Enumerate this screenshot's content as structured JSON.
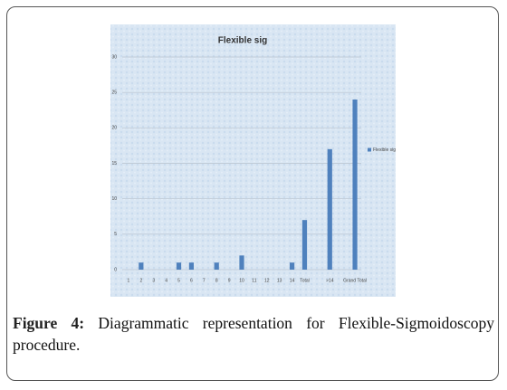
{
  "chart_data": {
    "type": "bar",
    "title": "Flexible sig",
    "categories": [
      "1",
      "2",
      "3",
      "4",
      "5",
      "6",
      "7",
      "8",
      "9",
      "10",
      "11",
      "12",
      "13",
      "14",
      "Total",
      null,
      ">14",
      null,
      "Grand Total"
    ],
    "series": [
      {
        "name": "Flexible sig",
        "color": "#4f81bd",
        "values": [
          0,
          1,
          0,
          0,
          1,
          1,
          0,
          1,
          0,
          2,
          0,
          0,
          0,
          1,
          7,
          null,
          17,
          null,
          24
        ]
      }
    ],
    "ylim": [
      0,
      30
    ],
    "yticks": [
      0,
      5,
      10,
      15,
      20,
      25,
      30
    ],
    "grid": true,
    "legend": "right"
  },
  "caption": {
    "label": "Figure 4:",
    "text": "Diagrammatic representation for Flexible-Sigmoidoscopy procedure."
  }
}
